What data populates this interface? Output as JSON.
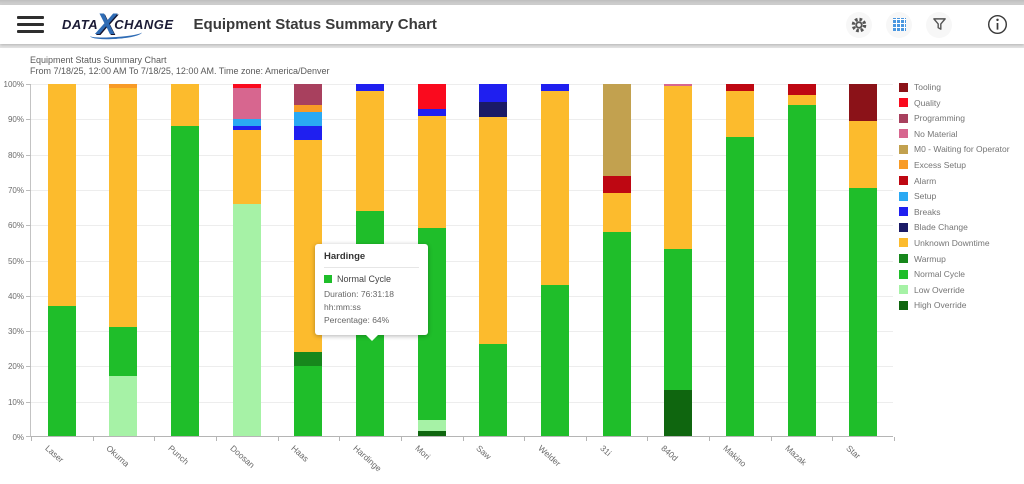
{
  "header": {
    "logo_data": "DATA",
    "logo_x": "X",
    "logo_change": "CHANGE",
    "title": "Equipment Status Summary Chart"
  },
  "toolbar": {
    "icons": [
      "gear-icon",
      "table-view-icon",
      "filter-funnel-icon",
      "info-icon"
    ]
  },
  "subtitle": {
    "line1": "Equipment Status Summary Chart",
    "line2": "From 7/18/25, 12:00 AM To 7/18/25, 12:00 AM. Time zone: America/Denver"
  },
  "tooltip": {
    "title": "Hardinge",
    "series_label": "Normal Cycle",
    "series_color": "#1fbe2a",
    "duration": "Duration: 76:31:18 hh:mm:ss",
    "percentage": "Percentage: 64%"
  },
  "chart_data": {
    "type": "bar",
    "stacked": true,
    "stack_mode": "percent",
    "grid": true,
    "legend_position": "right",
    "ylim": [
      0,
      100
    ],
    "yticks": [
      "0%",
      "10%",
      "20%",
      "30%",
      "40%",
      "50%",
      "60%",
      "70%",
      "80%",
      "90%",
      "100%"
    ],
    "categories": [
      "Laser",
      "Okuma",
      "Punch",
      "Doosan",
      "Haas",
      "Hardinge",
      "Mori",
      "Saw",
      "Welder",
      "31i",
      "840d",
      "Makino",
      "Mazak",
      "Star"
    ],
    "highlight": {
      "category": "Hardinge",
      "series": "Normal Cycle"
    },
    "series": [
      {
        "name": "Tooling",
        "color": "#8b1218",
        "values": [
          0,
          0,
          0,
          0,
          0,
          0,
          0,
          0,
          0,
          0,
          0,
          0,
          0,
          10.5
        ]
      },
      {
        "name": "Quality",
        "color": "#fa0a1e",
        "values": [
          0,
          0,
          0,
          1,
          0,
          0,
          7,
          0,
          0,
          0,
          0,
          0,
          0,
          0
        ]
      },
      {
        "name": "Programming",
        "color": "#a8405e",
        "values": [
          0,
          0,
          0,
          0,
          6,
          0,
          0,
          0,
          0,
          0,
          0,
          0,
          0,
          0
        ]
      },
      {
        "name": "No Material",
        "color": "#d7668f",
        "values": [
          0,
          0,
          0,
          9,
          0,
          0,
          0,
          0,
          0,
          0,
          0.5,
          0,
          0,
          0
        ]
      },
      {
        "name": "M0 - Waiting for Operator",
        "color": "#c2a14f",
        "values": [
          0,
          0,
          0,
          0,
          0,
          0,
          0,
          0,
          0,
          26,
          0,
          0,
          0,
          0
        ]
      },
      {
        "name": "Excess Setup",
        "color": "#f89b26",
        "values": [
          0,
          1,
          0,
          0,
          2,
          0,
          0,
          0,
          0,
          0,
          0,
          0,
          0,
          0
        ]
      },
      {
        "name": "Alarm",
        "color": "#be0712",
        "values": [
          0,
          0,
          0,
          0,
          0,
          0,
          0,
          0,
          0,
          5,
          0,
          2,
          3,
          0
        ]
      },
      {
        "name": "Setup",
        "color": "#2aa9f3",
        "values": [
          0,
          0,
          0,
          2,
          4,
          0,
          0,
          0,
          0,
          0,
          0,
          0,
          0,
          0
        ]
      },
      {
        "name": "Breaks",
        "color": "#1f1ff0",
        "values": [
          0,
          0,
          0,
          1,
          4,
          2,
          2,
          5,
          2,
          0,
          0,
          0,
          0,
          0
        ]
      },
      {
        "name": "Blade Change",
        "color": "#1a1a66",
        "values": [
          0,
          0,
          0,
          0,
          0,
          0,
          0,
          4.5,
          0,
          0,
          0,
          0,
          0,
          0
        ]
      },
      {
        "name": "Unknown Downtime",
        "color": "#fcbb2d",
        "values": [
          63,
          68,
          12,
          21,
          60,
          34,
          32,
          64.5,
          55,
          11,
          46.5,
          13,
          3,
          19
        ]
      },
      {
        "name": "Warmup",
        "color": "#17871c",
        "values": [
          0,
          0,
          0,
          0,
          4,
          0,
          0,
          0,
          0,
          0,
          0,
          0,
          0,
          0
        ]
      },
      {
        "name": "Normal Cycle",
        "color": "#1fbe2a",
        "values": [
          37,
          14,
          88,
          0,
          20,
          64,
          54.5,
          26,
          43,
          58,
          40,
          85,
          94,
          70.5
        ]
      },
      {
        "name": "Low Override",
        "color": "#a6f2a6",
        "values": [
          0,
          17,
          0,
          66,
          0,
          0,
          3,
          0,
          0,
          0,
          0,
          0,
          0,
          0
        ]
      },
      {
        "name": "High Override",
        "color": "#0f660f",
        "values": [
          0,
          0,
          0,
          0,
          0,
          0,
          1.5,
          0,
          0,
          0,
          13,
          0,
          0,
          0
        ]
      }
    ]
  }
}
